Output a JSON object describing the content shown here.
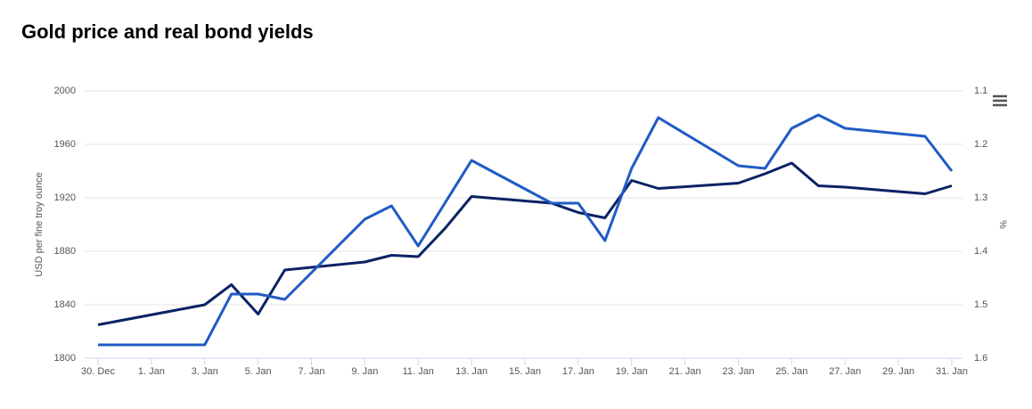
{
  "chart_data": {
    "type": "line",
    "title": "Gold price and real bond yields",
    "y_label": "USD per fine troy ounce",
    "y2_label": "%",
    "x": [
      0,
      4,
      5,
      6,
      7,
      10,
      11,
      12,
      13,
      14,
      17,
      18,
      19,
      20,
      21,
      24,
      25,
      26,
      27,
      28,
      31,
      32
    ],
    "xlim": [
      0,
      32
    ],
    "xticks": [
      {
        "value": 0,
        "label": "30. Dec"
      },
      {
        "value": 2,
        "label": "1. Jan"
      },
      {
        "value": 4,
        "label": "3. Jan"
      },
      {
        "value": 6,
        "label": "5. Jan"
      },
      {
        "value": 8,
        "label": "7. Jan"
      },
      {
        "value": 10,
        "label": "9. Jan"
      },
      {
        "value": 12,
        "label": "11. Jan"
      },
      {
        "value": 14,
        "label": "13. Jan"
      },
      {
        "value": 16,
        "label": "15. Jan"
      },
      {
        "value": 18,
        "label": "17. Jan"
      },
      {
        "value": 20,
        "label": "19. Jan"
      },
      {
        "value": 22,
        "label": "21. Jan"
      },
      {
        "value": 24,
        "label": "23. Jan"
      },
      {
        "value": 26,
        "label": "25. Jan"
      },
      {
        "value": 28,
        "label": "27. Jan"
      },
      {
        "value": 30,
        "label": "29. Jan"
      },
      {
        "value": 32,
        "label": "31. Jan"
      }
    ],
    "ylim": [
      1800,
      2000
    ],
    "yticks": [
      1800,
      1840,
      1880,
      1920,
      1960,
      2000
    ],
    "y2lim": [
      1.6,
      1.1
    ],
    "y2ticks": [
      1.1,
      1.2,
      1.3,
      1.4,
      1.5,
      1.6
    ],
    "grid": true,
    "series": [
      {
        "color": "#0b2265",
        "values": [
          1825,
          1840,
          1855,
          1833,
          1866,
          1872,
          1877,
          1876,
          1897,
          1921,
          1916,
          1909,
          1905,
          1933,
          1927,
          1931,
          1938,
          1946,
          1929,
          1928,
          1923,
          1929
        ]
      },
      {
        "color": "#1f5bc4",
        "axis": "y2",
        "values": [
          1.575,
          1.575,
          1.48,
          1.48,
          1.49,
          1.34,
          1.315,
          1.39,
          1.31,
          1.23,
          1.31,
          1.31,
          1.38,
          1.245,
          1.15,
          1.24,
          1.245,
          1.17,
          1.145,
          1.17,
          1.185,
          1.25
        ]
      }
    ]
  }
}
